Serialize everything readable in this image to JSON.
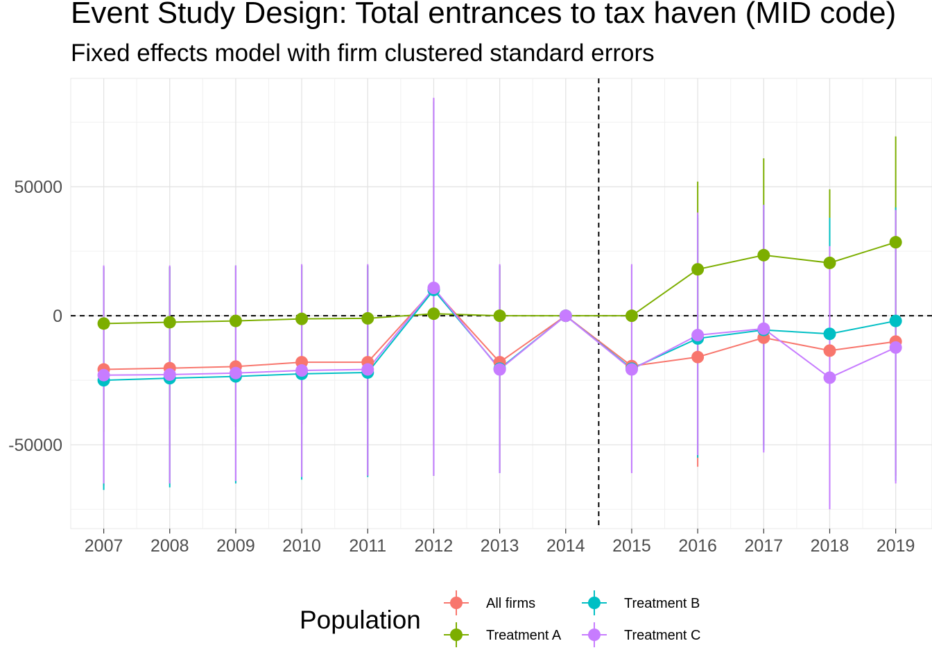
{
  "chart_data": {
    "type": "line",
    "title": "Event Study Design: Total entrances to tax haven (MID code)",
    "subtitle": "Fixed effects model with firm clustered standard errors",
    "xlabel": "",
    "ylabel": "",
    "x": [
      2007,
      2008,
      2009,
      2010,
      2011,
      2012,
      2013,
      2014,
      2015,
      2016,
      2017,
      2018,
      2019
    ],
    "x_tick_labels": [
      "2007",
      "2008",
      "2009",
      "2010",
      "2011",
      "2012",
      "2013",
      "2014",
      "2015",
      "2016",
      "2017",
      "2018",
      "2019"
    ],
    "xlim": [
      2006.5,
      2019.55
    ],
    "y_ticks": [
      -50000,
      0,
      50000
    ],
    "y_tick_labels": [
      "-50000",
      "0",
      "50000"
    ],
    "ylim": [
      -82500,
      92000
    ],
    "grid": true,
    "reference_lines": {
      "horizontal": 0,
      "vertical": 2014.5,
      "style": "dashed"
    },
    "legend_title": "Population",
    "legend_position": "bottom",
    "series": [
      {
        "name": "All firms",
        "color": "#F8766D",
        "values": [
          -20800,
          -20300,
          -19700,
          -18000,
          -18000,
          10200,
          -18000,
          0,
          -19500,
          -16000,
          -8500,
          -13500,
          -10000
        ],
        "lower": [
          -66000,
          -65000,
          -64000,
          -62500,
          -62000,
          -62000,
          -60500,
          0,
          -60000,
          -58500,
          -50000,
          -72000,
          -62000
        ],
        "upper": [
          18500,
          19000,
          19500,
          19500,
          19500,
          83000,
          19500,
          0,
          19500,
          38000,
          41000,
          25000,
          41000
        ]
      },
      {
        "name": "Treatment A",
        "color": "#7CAE00",
        "values": [
          -3000,
          -2500,
          -2000,
          -1200,
          -1000,
          800,
          0,
          0,
          0,
          18000,
          23500,
          20500,
          28500
        ],
        "lower": [
          -45000,
          -44000,
          -43000,
          -42000,
          -41000,
          -50000,
          -40000,
          0,
          -40000,
          -15000,
          -12000,
          -8000,
          -10000
        ],
        "upper": [
          19000,
          19000,
          19000,
          19500,
          19500,
          84000,
          19500,
          0,
          19500,
          52000,
          61000,
          49000,
          69500
        ]
      },
      {
        "name": "Treatment B",
        "color": "#00BFC4",
        "values": [
          -25000,
          -24200,
          -23500,
          -22500,
          -22000,
          10000,
          -20500,
          0,
          -20500,
          -8800,
          -5500,
          -7000,
          -2000
        ],
        "lower": [
          -67500,
          -66500,
          -65000,
          -63500,
          -62500,
          -62000,
          -61000,
          0,
          -60500,
          -55000,
          -52000,
          -74000,
          -64000
        ],
        "upper": [
          19000,
          19000,
          19500,
          19500,
          19500,
          83000,
          19500,
          0,
          19500,
          39000,
          43000,
          38000,
          42000
        ]
      },
      {
        "name": "Treatment C",
        "color": "#C77CFF",
        "values": [
          -23000,
          -22800,
          -22200,
          -21200,
          -20800,
          10800,
          -20800,
          0,
          -20800,
          -7500,
          -5000,
          -24000,
          -12300
        ],
        "lower": [
          -65000,
          -65000,
          -64000,
          -62500,
          -62000,
          -62000,
          -61000,
          0,
          -61000,
          -54000,
          -53000,
          -75000,
          -65000
        ],
        "upper": [
          19500,
          19500,
          19500,
          20000,
          20000,
          84500,
          20000,
          0,
          20000,
          40000,
          43000,
          27000,
          41000
        ]
      }
    ]
  }
}
